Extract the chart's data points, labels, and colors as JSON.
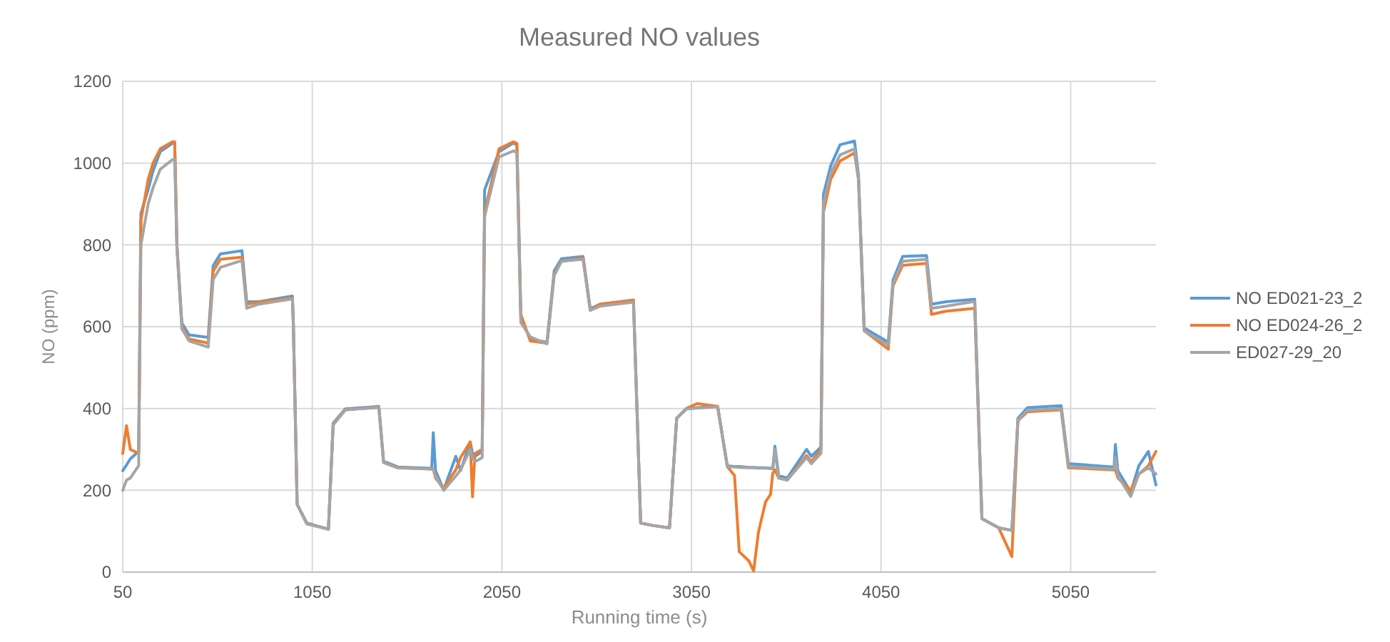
{
  "chart_data": {
    "type": "line",
    "title": "Measured NO values",
    "xlabel": "Running time (s)",
    "ylabel": "NO (ppm)",
    "x": [
      50,
      70,
      90,
      134,
      146,
      184,
      210,
      248,
      311,
      324,
      336,
      362,
      400,
      501,
      527,
      565,
      679,
      704,
      767,
      945,
      950,
      970,
      1021,
      1135,
      1160,
      1224,
      1401,
      1426,
      1502,
      1680,
      1688,
      1700,
      1743,
      1807,
      1832,
      1883,
      1895,
      1908,
      1946,
      1959,
      2035,
      2111,
      2129,
      2150,
      2200,
      2288,
      2326,
      2364,
      2478,
      2516,
      2567,
      2744,
      2782,
      2846,
      2934,
      2972,
      3023,
      3080,
      3188,
      3239,
      3277,
      3302,
      3353,
      3378,
      3403,
      3441,
      3467,
      3479,
      3490,
      3510,
      3555,
      3657,
      3682,
      3733,
      3746,
      3784,
      3834,
      3910,
      3931,
      3961,
      4088,
      4113,
      4164,
      4290,
      4316,
      4392,
      4544,
      4582,
      4671,
      4740,
      4772,
      4822,
      5000,
      5038,
      5279,
      5286,
      5299,
      5367,
      5410,
      5460,
      5500
    ],
    "series": [
      {
        "name": "NO ED021-23_2",
        "color": "#5b9bd5",
        "values": [
          248,
          262,
          277,
          295,
          877,
          935,
          981,
          1028,
          1048,
          1051,
          795,
          609,
          580,
          574,
          749,
          778,
          786,
          661,
          661,
          675,
          609,
          166,
          120,
          105,
          364,
          399,
          405,
          271,
          257,
          254,
          341,
          248,
          201,
          283,
          248,
          318,
          290,
          283,
          295,
          935,
          1028,
          1049,
          1045,
          620,
          570,
          562,
          737,
          766,
          772,
          644,
          655,
          665,
          120,
          114,
          108,
          376,
          399,
          402,
          405,
          260,
          258,
          258,
          256,
          256,
          255,
          255,
          254,
          254,
          308,
          236,
          230,
          300,
          283,
          306,
          923,
          993,
          1045,
          1054,
          970,
          597,
          562,
          714,
          772,
          774,
          655,
          661,
          667,
          131,
          108,
          102,
          376,
          402,
          407,
          265,
          257,
          312,
          248,
          196,
          260,
          295,
          213
        ]
      },
      {
        "name": "NO ED024-26_2",
        "color": "#ed7d31",
        "values": [
          290,
          358,
          300,
          290,
          860,
          960,
          1000,
          1035,
          1052,
          1052,
          800,
          600,
          570,
          560,
          735,
          765,
          770,
          655,
          660,
          670,
          605,
          166,
          118,
          105,
          360,
          397,
          403,
          268,
          255,
          252,
          252,
          230,
          205,
          250,
          280,
          318,
          184,
          290,
          300,
          880,
          1035,
          1052,
          1048,
          630,
          565,
          560,
          730,
          760,
          768,
          640,
          655,
          665,
          120,
          114,
          108,
          376,
          400,
          412,
          405,
          258,
          236,
          50,
          27,
          3,
          97,
          172,
          190,
          242,
          250,
          230,
          225,
          285,
          270,
          300,
          880,
          960,
          1005,
          1025,
          960,
          590,
          545,
          700,
          750,
          755,
          630,
          638,
          645,
          131,
          108,
          38,
          370,
          392,
          397,
          255,
          250,
          250,
          230,
          200,
          240,
          260,
          295
        ]
      },
      {
        "name": "ED027-29_20",
        "color": "#a5a5a5",
        "values": [
          200,
          225,
          230,
          260,
          800,
          900,
          940,
          985,
          1008,
          1010,
          790,
          595,
          565,
          550,
          715,
          745,
          762,
          645,
          655,
          668,
          605,
          166,
          118,
          105,
          360,
          397,
          403,
          268,
          255,
          252,
          252,
          235,
          200,
          235,
          250,
          300,
          280,
          270,
          280,
          870,
          1015,
          1030,
          1025,
          610,
          575,
          558,
          725,
          760,
          765,
          640,
          650,
          660,
          120,
          114,
          108,
          376,
          399,
          401,
          404,
          258,
          257,
          256,
          255,
          255,
          254,
          254,
          253,
          253,
          300,
          230,
          225,
          280,
          265,
          290,
          900,
          975,
          1020,
          1035,
          960,
          590,
          555,
          705,
          760,
          765,
          645,
          650,
          662,
          131,
          108,
          102,
          372,
          395,
          400,
          258,
          252,
          280,
          235,
          185,
          240,
          255,
          240
        ]
      }
    ],
    "xlim": [
      50,
      5500
    ],
    "xticks": [
      50,
      1050,
      2050,
      3050,
      4050,
      5050
    ],
    "ylim": [
      0,
      1200
    ],
    "yticks": [
      0,
      200,
      400,
      600,
      800,
      1000,
      1200
    ],
    "grid": true,
    "legend": "right",
    "marker": "none",
    "line_style": "solid"
  }
}
